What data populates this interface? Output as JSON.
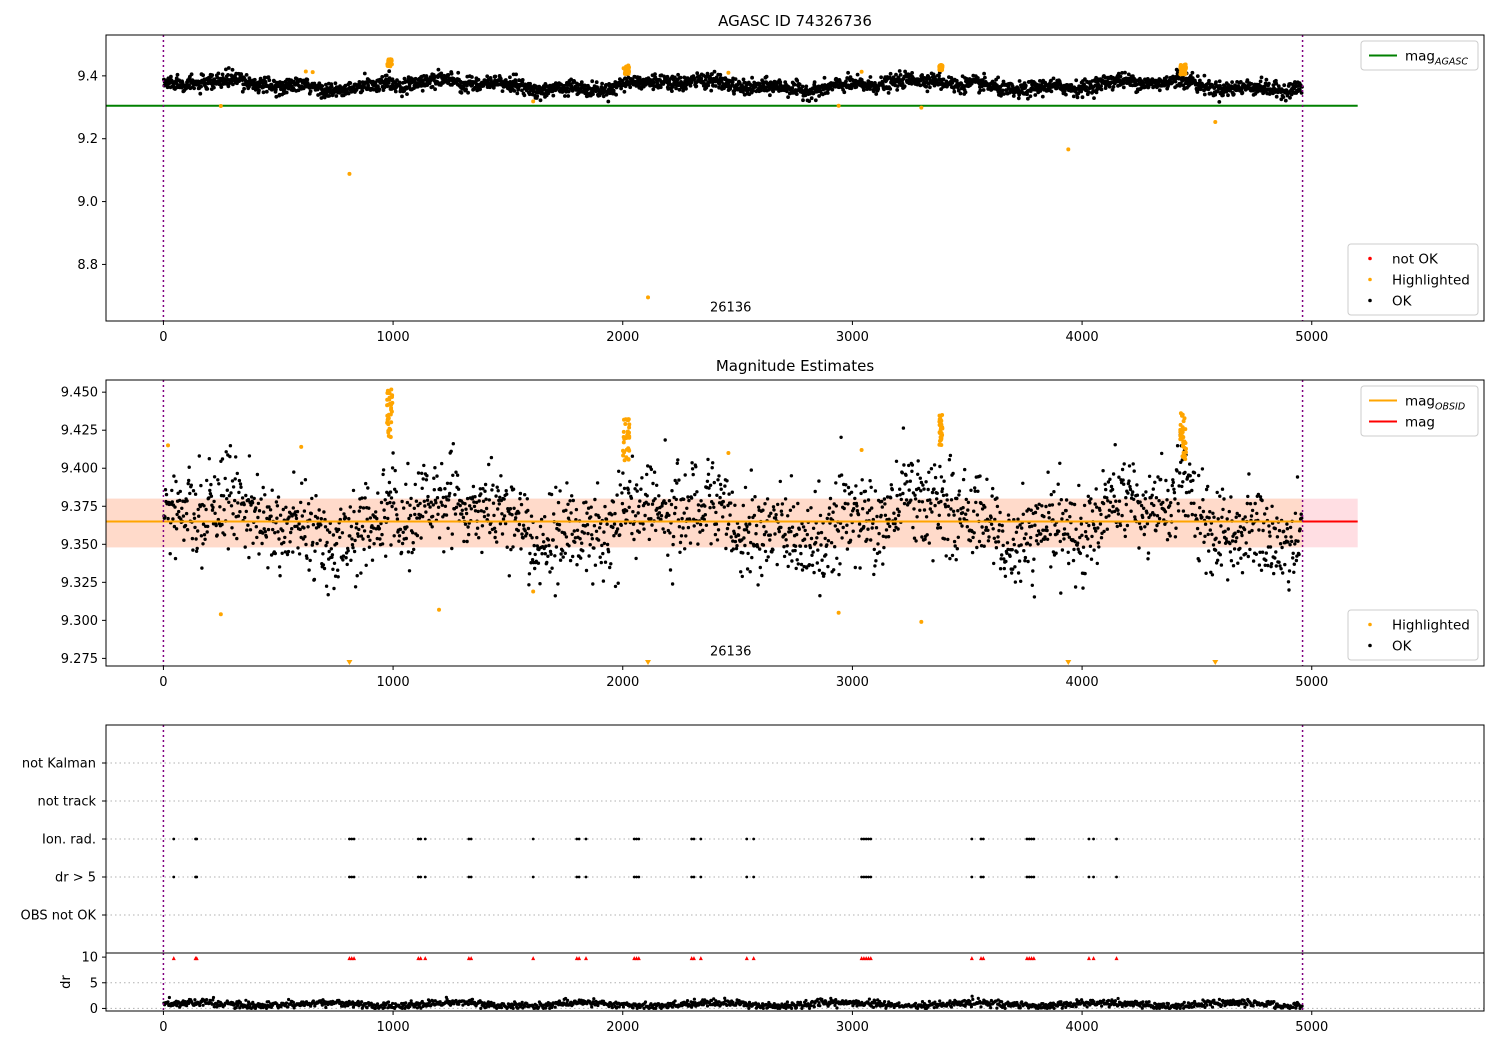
{
  "chart_data": [
    {
      "panel": "magnitude",
      "type": "scatter",
      "title": "AGASC ID 74326736",
      "xlim": [
        -250,
        5750
      ],
      "ylim": [
        8.62,
        9.53
      ],
      "xticks": [
        0,
        1000,
        2000,
        3000,
        4000,
        5000
      ],
      "yticks": [
        8.8,
        9.0,
        9.2,
        9.4
      ],
      "annotation": {
        "text": "26136",
        "x": 2470,
        "y": 8.65
      },
      "vlines": [
        0,
        4960
      ],
      "hlines": [
        {
          "name": "mag_AGASC",
          "y": 9.305,
          "x": [
            -250,
            5200
          ],
          "color": "#008000"
        }
      ],
      "ok_band": {
        "base": 9.37,
        "amplitude": 0.012,
        "noise": 0.012
      },
      "highlighted_outliers": [
        {
          "x": 250,
          "y": 9.304
        },
        {
          "x": 810,
          "y": 9.088
        },
        {
          "x": 1610,
          "y": 9.319
        },
        {
          "x": 2110,
          "y": 8.695
        },
        {
          "x": 2940,
          "y": 9.305
        },
        {
          "x": 3040,
          "y": 9.413
        },
        {
          "x": 3300,
          "y": 9.299
        },
        {
          "x": 3940,
          "y": 9.166
        },
        {
          "x": 4580,
          "y": 9.253
        },
        {
          "x": 620,
          "y": 9.414
        },
        {
          "x": 650,
          "y": 9.412
        },
        {
          "x": 2460,
          "y": 9.41
        }
      ],
      "highlighted_clusters": [
        {
          "x": 985,
          "width": 20,
          "low": 9.43,
          "high": 9.453
        },
        {
          "x": 2015,
          "width": 25,
          "low": 9.405,
          "high": 9.433
        },
        {
          "x": 3385,
          "width": 14,
          "low": 9.418,
          "high": 9.435
        },
        {
          "x": 4440,
          "width": 25,
          "low": 9.405,
          "high": 9.437
        }
      ],
      "legends": [
        {
          "position": "top-right",
          "entries": [
            {
              "label": "mag",
              "sub": "AGASC",
              "kind": "line",
              "color": "#008000"
            }
          ]
        },
        {
          "position": "bottom-right",
          "entries": [
            {
              "label": "not OK",
              "kind": "dot",
              "color": "#ff0000"
            },
            {
              "label": "Highlighted",
              "kind": "dot",
              "color": "#ffa500"
            },
            {
              "label": "OK",
              "kind": "dot",
              "color": "#000000"
            }
          ]
        }
      ]
    },
    {
      "panel": "estimates",
      "type": "scatter",
      "title": "Magnitude Estimates",
      "xlim": [
        -250,
        5750
      ],
      "ylim": [
        9.27,
        9.458
      ],
      "xticks": [
        0,
        1000,
        2000,
        3000,
        4000,
        5000
      ],
      "yticks": [
        9.275,
        9.3,
        9.325,
        9.35,
        9.375,
        9.4,
        9.425,
        9.45
      ],
      "annotation": {
        "text": "26136",
        "x": 2470,
        "y": 9.277
      },
      "vlines": [
        0,
        4960
      ],
      "band": {
        "y": [
          9.348,
          9.38
        ],
        "x": [
          -250,
          5200
        ],
        "color": "#ffb6c1"
      },
      "band_inner": {
        "y": [
          9.348,
          9.38
        ],
        "x": [
          -250,
          4960
        ],
        "color": "#ffd9c7"
      },
      "hlines": [
        {
          "name": "mag",
          "y": 9.365,
          "x": [
            -250,
            5200
          ],
          "color": "#ff0000"
        },
        {
          "name": "mag_OBSID",
          "y": 9.365,
          "x": [
            -250,
            4960
          ],
          "color": "#ffa500"
        }
      ],
      "ok_band": {
        "base": 9.365,
        "amplitude": 0.012,
        "noise": 0.014
      },
      "highlighted_outliers": [
        {
          "x": 250,
          "y": 9.304
        },
        {
          "x": 1200,
          "y": 9.307
        },
        {
          "x": 1610,
          "y": 9.319
        },
        {
          "x": 2940,
          "y": 9.305
        },
        {
          "x": 3040,
          "y": 9.412
        },
        {
          "x": 3300,
          "y": 9.299
        },
        {
          "x": 600,
          "y": 9.414
        },
        {
          "x": 2460,
          "y": 9.41
        },
        {
          "x": 20,
          "y": 9.415
        }
      ],
      "highlighted_clusters": [
        {
          "x": 985,
          "width": 25,
          "low": 9.42,
          "high": 9.452
        },
        {
          "x": 2015,
          "width": 28,
          "low": 9.405,
          "high": 9.433
        },
        {
          "x": 3385,
          "width": 14,
          "low": 9.415,
          "high": 9.435
        },
        {
          "x": 4440,
          "width": 25,
          "low": 9.405,
          "high": 9.437
        }
      ],
      "clipped_markers": [
        810,
        2110,
        3940,
        4580
      ],
      "legends": [
        {
          "position": "top-right",
          "entries": [
            {
              "label": "mag",
              "sub": "OBSID",
              "kind": "line",
              "color": "#ffa500"
            },
            {
              "label": "mag",
              "kind": "line",
              "color": "#ff0000"
            }
          ]
        },
        {
          "position": "bottom-right",
          "entries": [
            {
              "label": "Highlighted",
              "kind": "dot",
              "color": "#ffa500"
            },
            {
              "label": "OK",
              "kind": "dot",
              "color": "#000000"
            }
          ]
        }
      ]
    },
    {
      "panel": "flags",
      "type": "scatter",
      "xlim": [
        -250,
        5750
      ],
      "categories": [
        "OBS not OK",
        "dr > 5",
        "Ion. rad.",
        "not track",
        "not Kalman"
      ],
      "vlines": [
        0,
        4960
      ],
      "flag_x": [
        45,
        140,
        145,
        810,
        820,
        830,
        1110,
        1120,
        1140,
        1330,
        1340,
        1610,
        1800,
        1810,
        1840,
        2050,
        2060,
        2070,
        2300,
        2310,
        2340,
        2540,
        2570,
        3040,
        3050,
        3060,
        3070,
        3080,
        3520,
        3560,
        3570,
        3760,
        3770,
        3780,
        3790,
        4030,
        4050,
        4150
      ],
      "flag_rows": [
        "dr > 5",
        "Ion. rad."
      ]
    },
    {
      "panel": "dr",
      "type": "scatter",
      "ylabel": "dr",
      "xlim": [
        -250,
        5750
      ],
      "ylim": [
        -0.5,
        10.8
      ],
      "xticks": [
        0,
        1000,
        2000,
        3000,
        4000,
        5000
      ],
      "yticks": [
        0,
        5,
        10
      ],
      "vlines": [
        0,
        4960
      ],
      "dr_base": 0.8,
      "dr_cap": 10
    }
  ]
}
